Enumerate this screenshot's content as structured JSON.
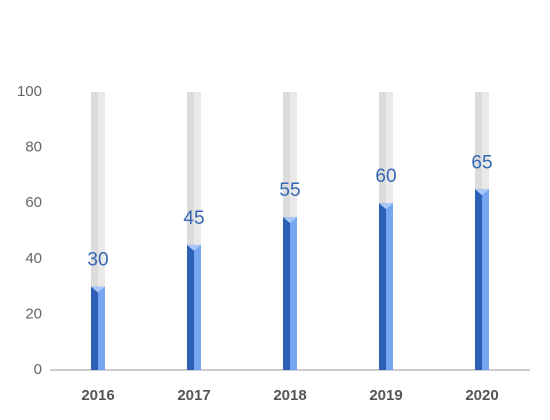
{
  "chart_data": {
    "type": "bar",
    "categories": [
      "2016",
      "2017",
      "2018",
      "2019",
      "2020"
    ],
    "values": [
      30,
      45,
      55,
      60,
      65
    ],
    "color": "#2c5fb5",
    "highlight_color": "#74a6f2",
    "track_color": "#dcdcdc",
    "label_color": "#3566b3",
    "ylim": [
      0,
      100
    ],
    "yticks": [
      0,
      20,
      40,
      60,
      80,
      100
    ]
  }
}
